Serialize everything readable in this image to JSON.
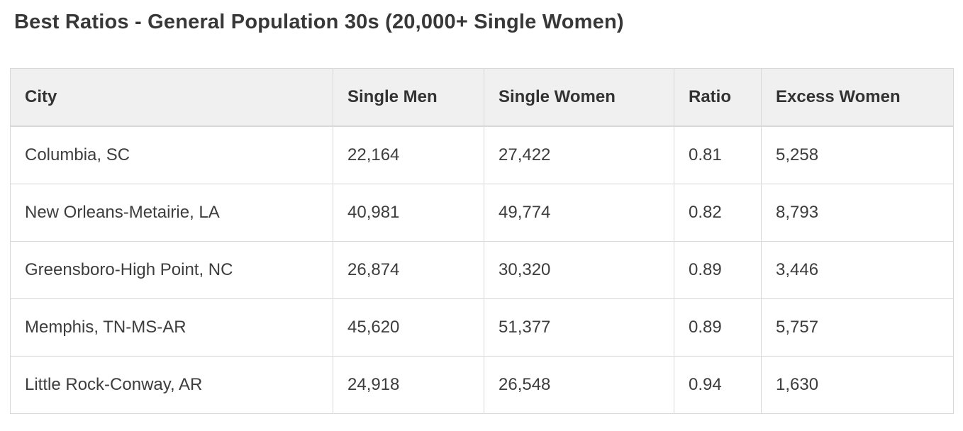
{
  "page": {
    "title": "Best Ratios - General Population 30s (20,000+ Single Women)"
  },
  "colors": {
    "header_bg": "#f0f0f0",
    "border": "#d8d8d8",
    "text": "#3b3b3b",
    "background": "#ffffff"
  },
  "table": {
    "headers": [
      "City",
      "Single Men",
      "Single Women",
      "Ratio",
      "Excess Women"
    ],
    "rows": [
      [
        "Columbia, SC",
        "22,164",
        "27,422",
        "0.81",
        "5,258"
      ],
      [
        "New Orleans-Metairie, LA",
        "40,981",
        "49,774",
        "0.82",
        "8,793"
      ],
      [
        "Greensboro-High Point, NC",
        "26,874",
        "30,320",
        "0.89",
        "3,446"
      ],
      [
        "Memphis, TN-MS-AR",
        "45,620",
        "51,377",
        "0.89",
        "5,757"
      ],
      [
        "Little Rock-Conway, AR",
        "24,918",
        "26,548",
        "0.94",
        "1,630"
      ]
    ]
  },
  "chart_data": {
    "type": "table",
    "title": "Best Ratios - General Population 30s (20,000+ Single Women)",
    "columns": [
      "City",
      "Single Men",
      "Single Women",
      "Ratio",
      "Excess Women"
    ],
    "rows": [
      {
        "city": "Columbia, SC",
        "single_men": 22164,
        "single_women": 27422,
        "ratio": 0.81,
        "excess_women": 5258
      },
      {
        "city": "New Orleans-Metairie, LA",
        "single_men": 40981,
        "single_women": 49774,
        "ratio": 0.82,
        "excess_women": 8793
      },
      {
        "city": "Greensboro-High Point, NC",
        "single_men": 26874,
        "single_women": 30320,
        "ratio": 0.89,
        "excess_women": 3446
      },
      {
        "city": "Memphis, TN-MS-AR",
        "single_men": 45620,
        "single_women": 51377,
        "ratio": 0.89,
        "excess_women": 5757
      },
      {
        "city": "Little Rock-Conway, AR",
        "single_men": 24918,
        "single_women": 26548,
        "ratio": 0.94,
        "excess_women": 1630
      }
    ]
  }
}
